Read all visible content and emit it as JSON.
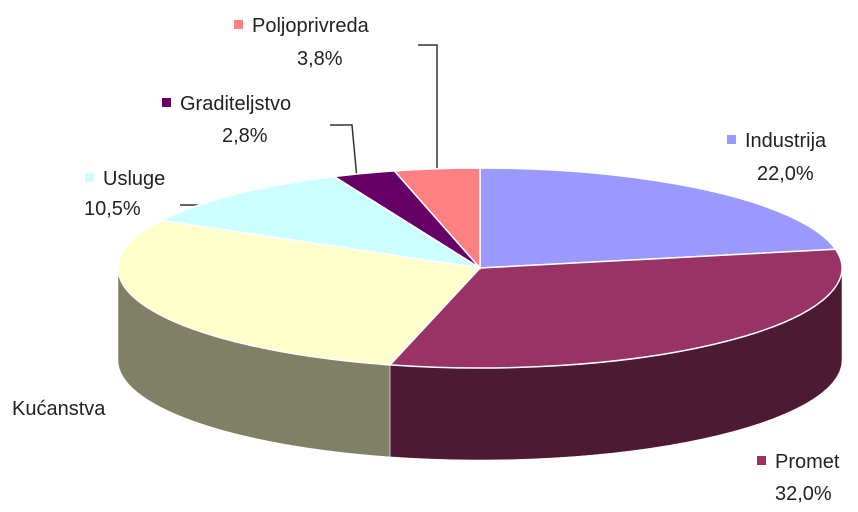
{
  "chart_data": {
    "type": "pie",
    "three_d": true,
    "categories": [
      "Industrija",
      "Promet",
      "Kućanstva",
      "Usluge",
      "Graditeljstvo",
      "Poljoprivreda"
    ],
    "values": [
      22.0,
      32.0,
      28.9,
      10.5,
      2.8,
      3.8
    ],
    "value_labels": [
      "22,0%",
      "32,0%",
      null,
      "10,5%",
      "2,8%",
      "3,8%"
    ],
    "colors": [
      "#9999ff",
      "#993366",
      "#ffffcc",
      "#ccffff",
      "#660066",
      "#ff8080"
    ]
  }
}
